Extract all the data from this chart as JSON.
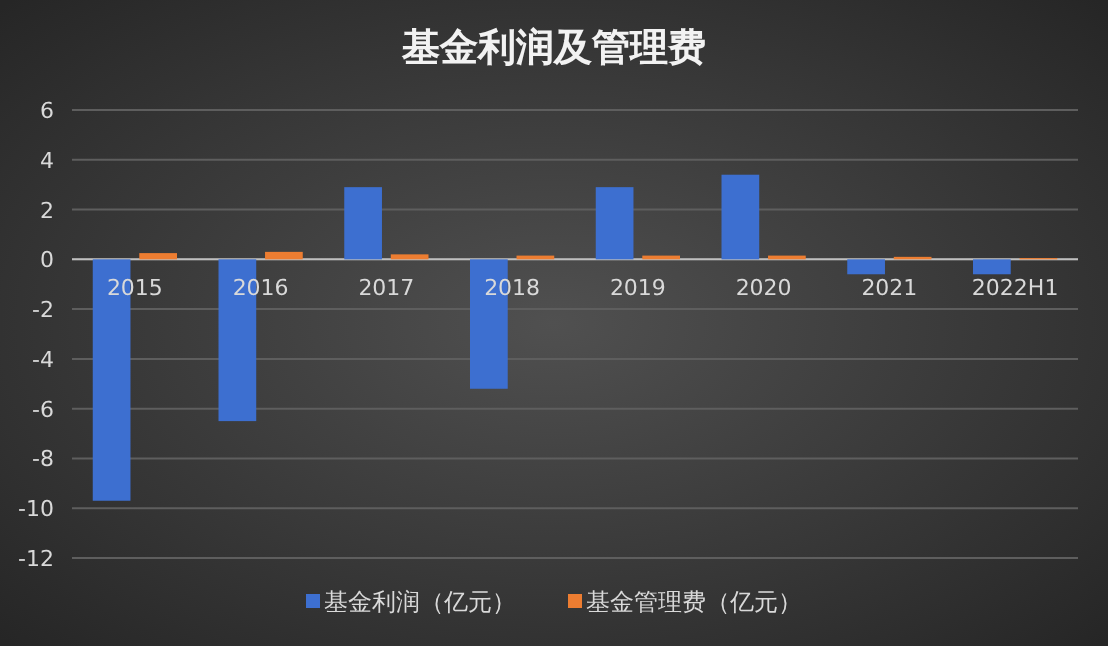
{
  "chart_data": {
    "type": "bar",
    "title": "基金利润及管理费",
    "categories": [
      "2015",
      "2016",
      "2017",
      "2018",
      "2019",
      "2020",
      "2021",
      "2022H1"
    ],
    "series": [
      {
        "name": "基金利润（亿元）",
        "color": "#3d6fd0",
        "values": [
          -9.7,
          -6.5,
          2.9,
          -5.2,
          2.9,
          3.4,
          -0.6,
          -0.6
        ]
      },
      {
        "name": "基金管理费（亿元）",
        "color": "#ed7d31",
        "values": [
          0.25,
          0.3,
          0.2,
          0.15,
          0.15,
          0.15,
          0.1,
          0.05
        ]
      }
    ],
    "ylim": [
      -12,
      6
    ],
    "yticks": [
      -12,
      -10,
      -8,
      -6,
      -4,
      -2,
      0,
      2,
      4,
      6
    ],
    "grid": "y",
    "legend": "bottom"
  }
}
